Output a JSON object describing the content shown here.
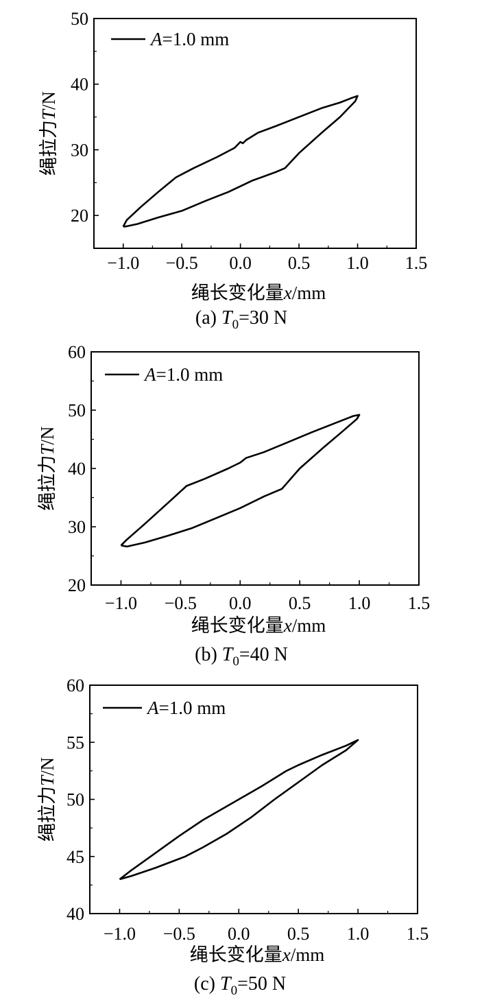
{
  "chart_data": [
    {
      "type": "line",
      "panel": "(a)",
      "caption": {
        "prefix": "(a) ",
        "var": "T",
        "sub": "0",
        "suffix": "=30 N"
      },
      "ylabel": {
        "cn": "绳拉力",
        "var": "T",
        "unit": "/N"
      },
      "xlabel": {
        "cn": "绳长变化量",
        "var": "x",
        "unit": "/mm"
      },
      "legend": {
        "var": "A",
        "text": "=1.0 mm"
      },
      "xlim": [
        -1.25,
        1.5
      ],
      "ylim": [
        15,
        50
      ],
      "xticks": [
        -1.0,
        -0.5,
        0.0,
        0.5,
        1.0,
        1.5
      ],
      "xtick_labels": [
        "−1.0",
        "−0.5",
        "0.0",
        "0.5",
        "1.0",
        "1.5"
      ],
      "yticks": [
        20,
        30,
        40,
        50
      ],
      "ytick_labels": [
        "20",
        "30",
        "40",
        "50"
      ],
      "series": [
        {
          "points": [
            [
              -1.0,
              18.3
            ],
            [
              -0.97,
              19.3
            ],
            [
              -0.85,
              21.3
            ],
            [
              -0.7,
              23.6
            ],
            [
              -0.55,
              25.8
            ],
            [
              -0.4,
              27.2
            ],
            [
              -0.2,
              28.9
            ],
            [
              -0.05,
              30.3
            ],
            [
              0.0,
              31.2
            ],
            [
              0.02,
              31.0
            ],
            [
              0.05,
              31.5
            ],
            [
              0.15,
              32.6
            ],
            [
              0.3,
              33.6
            ],
            [
              0.5,
              35.0
            ],
            [
              0.7,
              36.4
            ],
            [
              0.85,
              37.2
            ],
            [
              0.95,
              37.9
            ],
            [
              1.0,
              38.2
            ],
            [
              0.98,
              37.4
            ],
            [
              0.85,
              35.0
            ],
            [
              0.7,
              32.7
            ],
            [
              0.5,
              29.5
            ],
            [
              0.38,
              27.2
            ],
            [
              0.3,
              26.6
            ],
            [
              0.1,
              25.3
            ],
            [
              -0.1,
              23.6
            ],
            [
              -0.3,
              22.2
            ],
            [
              -0.5,
              20.7
            ],
            [
              -0.7,
              19.7
            ],
            [
              -0.88,
              18.7
            ],
            [
              -0.97,
              18.35
            ],
            [
              -1.0,
              18.3
            ]
          ]
        }
      ]
    },
    {
      "type": "line",
      "panel": "(b)",
      "caption": {
        "prefix": "(b) ",
        "var": "T",
        "sub": "0",
        "suffix": "=40 N"
      },
      "ylabel": {
        "cn": "绳拉力",
        "var": "T",
        "unit": "/N"
      },
      "xlabel": {
        "cn": "绳长变化量",
        "var": "x",
        "unit": "/mm"
      },
      "legend": {
        "var": "A",
        "text": "=1.0 mm"
      },
      "xlim": [
        -1.25,
        1.5
      ],
      "ylim": [
        20,
        60
      ],
      "xticks": [
        -1.0,
        -0.5,
        0.0,
        0.5,
        1.0,
        1.5
      ],
      "xtick_labels": [
        "−1.0",
        "−0.5",
        "0.0",
        "0.5",
        "1.0",
        "1.5"
      ],
      "yticks": [
        20,
        30,
        40,
        50,
        60
      ],
      "ytick_labels": [
        "20",
        "30",
        "40",
        "50",
        "60"
      ],
      "series": [
        {
          "points": [
            [
              -1.0,
              26.8
            ],
            [
              -0.95,
              27.8
            ],
            [
              -0.8,
              30.5
            ],
            [
              -0.6,
              34.2
            ],
            [
              -0.45,
              37.0
            ],
            [
              -0.3,
              38.2
            ],
            [
              -0.1,
              40.0
            ],
            [
              0.0,
              41.0
            ],
            [
              0.05,
              41.8
            ],
            [
              0.2,
              42.8
            ],
            [
              0.4,
              44.5
            ],
            [
              0.6,
              46.2
            ],
            [
              0.8,
              47.8
            ],
            [
              0.95,
              49.0
            ],
            [
              1.0,
              49.2
            ],
            [
              0.98,
              48.5
            ],
            [
              0.85,
              46.2
            ],
            [
              0.7,
              43.6
            ],
            [
              0.5,
              40.0
            ],
            [
              0.35,
              36.5
            ],
            [
              0.2,
              35.2
            ],
            [
              0.0,
              33.2
            ],
            [
              -0.2,
              31.5
            ],
            [
              -0.4,
              29.8
            ],
            [
              -0.6,
              28.5
            ],
            [
              -0.8,
              27.3
            ],
            [
              -0.95,
              26.6
            ],
            [
              -1.0,
              26.8
            ]
          ]
        }
      ]
    },
    {
      "type": "line",
      "panel": "(c)",
      "caption": {
        "prefix": "(c) ",
        "var": "T",
        "sub": "0",
        "suffix": "=50 N"
      },
      "ylabel": {
        "cn": "绳拉力",
        "var": "T",
        "unit": "/N"
      },
      "xlabel": {
        "cn": "绳长变化量",
        "var": "x",
        "unit": "/mm"
      },
      "legend": {
        "var": "A",
        "text": "=1.0 mm"
      },
      "xlim": [
        -1.25,
        1.5
      ],
      "ylim": [
        40,
        60
      ],
      "xticks": [
        -1.0,
        -0.5,
        0.0,
        0.5,
        1.0,
        1.5
      ],
      "xtick_labels": [
        "−1.0",
        "−0.5",
        "0.0",
        "0.5",
        "1.0",
        "1.5"
      ],
      "yticks": [
        40,
        45,
        50,
        55,
        60
      ],
      "ytick_labels": [
        "40",
        "45",
        "50",
        "55",
        "60"
      ],
      "series": [
        {
          "points": [
            [
              -1.0,
              43.0
            ],
            [
              -0.9,
              43.8
            ],
            [
              -0.7,
              45.3
            ],
            [
              -0.5,
              46.8
            ],
            [
              -0.3,
              48.2
            ],
            [
              -0.1,
              49.4
            ],
            [
              0.0,
              50.0
            ],
            [
              0.2,
              51.2
            ],
            [
              0.4,
              52.5
            ],
            [
              0.5,
              53.0
            ],
            [
              0.7,
              53.9
            ],
            [
              0.9,
              54.7
            ],
            [
              1.0,
              55.2
            ],
            [
              0.9,
              54.3
            ],
            [
              0.7,
              53.0
            ],
            [
              0.5,
              51.5
            ],
            [
              0.3,
              50.0
            ],
            [
              0.1,
              48.4
            ],
            [
              -0.1,
              47.0
            ],
            [
              -0.3,
              45.8
            ],
            [
              -0.45,
              45.0
            ],
            [
              -0.5,
              44.8
            ],
            [
              -0.7,
              44.0
            ],
            [
              -0.9,
              43.3
            ],
            [
              -1.0,
              43.0
            ]
          ]
        }
      ]
    }
  ]
}
